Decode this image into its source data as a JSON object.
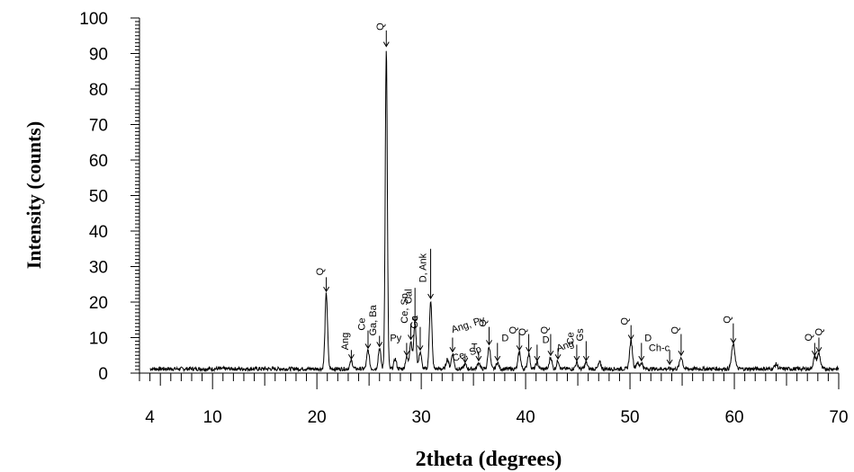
{
  "chart_data": {
    "type": "line",
    "title": "",
    "xlabel": "2theta (degrees)",
    "ylabel": "Intensity (counts)",
    "xlim": [
      3,
      70
    ],
    "ylim": [
      0,
      100
    ],
    "x_ticks": [
      4,
      10,
      20,
      30,
      40,
      50,
      60,
      70
    ],
    "y_ticks": [
      0,
      10,
      20,
      30,
      40,
      50,
      60,
      70,
      80,
      90,
      100
    ],
    "grid": false,
    "legend": "none",
    "line_color": "#000000",
    "baseline": 1.2,
    "peaks": [
      {
        "x": 20.9,
        "y": 22.5,
        "w": 0.12
      },
      {
        "x": 23.3,
        "y": 3.5,
        "w": 0.12
      },
      {
        "x": 24.9,
        "y": 6.5,
        "w": 0.12
      },
      {
        "x": 26.0,
        "y": 7.0,
        "w": 0.12
      },
      {
        "x": 26.65,
        "y": 91.5,
        "w": 0.1
      },
      {
        "x": 27.5,
        "y": 4.0,
        "w": 0.12
      },
      {
        "x": 28.6,
        "y": 4.5,
        "w": 0.12
      },
      {
        "x": 29.0,
        "y": 9.0,
        "w": 0.12
      },
      {
        "x": 29.4,
        "y": 14.0,
        "w": 0.12
      },
      {
        "x": 29.9,
        "y": 6.0,
        "w": 0.12
      },
      {
        "x": 30.9,
        "y": 20.5,
        "w": 0.12
      },
      {
        "x": 32.5,
        "y": 4.0,
        "w": 0.12
      },
      {
        "x": 33.0,
        "y": 5.5,
        "w": 0.12
      },
      {
        "x": 34.2,
        "y": 2.5,
        "w": 0.12
      },
      {
        "x": 35.5,
        "y": 3.0,
        "w": 0.12
      },
      {
        "x": 36.5,
        "y": 7.5,
        "w": 0.12
      },
      {
        "x": 37.3,
        "y": 3.0,
        "w": 0.12
      },
      {
        "x": 39.4,
        "y": 6.0,
        "w": 0.12
      },
      {
        "x": 40.3,
        "y": 5.5,
        "w": 0.12
      },
      {
        "x": 41.1,
        "y": 3.0,
        "w": 0.12
      },
      {
        "x": 42.4,
        "y": 4.5,
        "w": 0.12
      },
      {
        "x": 43.1,
        "y": 3.5,
        "w": 0.12
      },
      {
        "x": 44.9,
        "y": 3.0,
        "w": 0.12
      },
      {
        "x": 45.8,
        "y": 3.0,
        "w": 0.12
      },
      {
        "x": 47.1,
        "y": 3.0,
        "w": 0.12
      },
      {
        "x": 50.1,
        "y": 9.0,
        "w": 0.14
      },
      {
        "x": 50.7,
        "y": 3.0,
        "w": 0.12
      },
      {
        "x": 51.1,
        "y": 3.0,
        "w": 0.12
      },
      {
        "x": 54.9,
        "y": 4.5,
        "w": 0.14
      },
      {
        "x": 59.9,
        "y": 8.0,
        "w": 0.16
      },
      {
        "x": 64.0,
        "y": 2.5,
        "w": 0.14
      },
      {
        "x": 67.7,
        "y": 4.5,
        "w": 0.14
      },
      {
        "x": 68.1,
        "y": 5.5,
        "w": 0.14
      }
    ],
    "annotations": [
      {
        "label": "Q",
        "x": 20.9,
        "arrow_top": 27,
        "arrow_tip": 23,
        "rotate": -90,
        "lx": 20.6,
        "ly": 27.5
      },
      {
        "label": "Ang",
        "x": 23.3,
        "arrow_top": 6.5,
        "arrow_tip": 4,
        "rotate": -90,
        "lx": 23.0,
        "ly": 6.5
      },
      {
        "label": "Ce",
        "x": 24.9,
        "arrow_top": 12.0,
        "arrow_tip": 7,
        "rotate": -90,
        "lx": 24.6,
        "ly": 12.0
      },
      {
        "label": "Ga, Ba",
        "x": 26.0,
        "arrow_top": 10.5,
        "arrow_tip": 7.5,
        "rotate": -90,
        "lx": 25.7,
        "ly": 10.5
      },
      {
        "label": "Q",
        "x": 26.65,
        "arrow_top": 96.5,
        "arrow_tip": 92,
        "rotate": -90,
        "lx": 26.35,
        "ly": 96.5
      },
      {
        "label": "Py",
        "x": 28.6,
        "arrow_top": 8.5,
        "arrow_tip": 5,
        "rotate": 0,
        "lx": 27.0,
        "ly": 9.0
      },
      {
        "label": "Ce, Sp",
        "x": 29.0,
        "arrow_top": 14.0,
        "arrow_tip": 9.5,
        "rotate": -90,
        "lx": 28.7,
        "ly": 14.0
      },
      {
        "label": "Cal",
        "x": 29.4,
        "arrow_top": 24.0,
        "arrow_tip": 14.5,
        "rotate": -90,
        "lx": 29.1,
        "ly": 19.5
      },
      {
        "label": "Ga",
        "x": 29.9,
        "arrow_top": 13.0,
        "arrow_tip": 6.5,
        "rotate": -90,
        "lx": 29.65,
        "ly": 12.5
      },
      {
        "label": "D, Ank",
        "x": 30.9,
        "arrow_top": 35.0,
        "arrow_tip": 21,
        "rotate": -90,
        "lx": 30.45,
        "ly": 25.5
      },
      {
        "label": "Ang, Py",
        "x": 33.0,
        "arrow_top": 10.0,
        "arrow_tip": 6,
        "rotate": -18,
        "lx": 33.0,
        "ly": 11.3
      },
      {
        "label": "Ce, Sp",
        "x": 34.2,
        "arrow_top": 5.5,
        "arrow_tip": 3,
        "rotate": -20,
        "lx": 33.1,
        "ly": 3.2
      },
      {
        "label": "T",
        "x": 35.5,
        "arrow_top": 6.0,
        "arrow_tip": 3.5,
        "rotate": 0,
        "lx": 34.8,
        "ly": 6.5
      },
      {
        "label": "Q",
        "x": 36.5,
        "arrow_top": 13.0,
        "arrow_tip": 8,
        "rotate": -90,
        "lx": 36.2,
        "ly": 13.0
      },
      {
        "label": "D",
        "x": 37.3,
        "arrow_top": 8.5,
        "arrow_tip": 3.5,
        "rotate": 0,
        "lx": 37.7,
        "ly": 9.0
      },
      {
        "label": "Q",
        "x": 39.4,
        "arrow_top": 11.5,
        "arrow_tip": 6.5,
        "rotate": -90,
        "lx": 39.1,
        "ly": 11.0
      },
      {
        "label": "Q",
        "x": 40.3,
        "arrow_top": 11.0,
        "arrow_tip": 6,
        "rotate": -90,
        "lx": 40.0,
        "ly": 10.5
      },
      {
        "label": "D",
        "x": 41.1,
        "arrow_top": 8.0,
        "arrow_tip": 3.5,
        "rotate": 0,
        "lx": 41.6,
        "ly": 8.5
      },
      {
        "label": "Q",
        "x": 42.4,
        "arrow_top": 11.0,
        "arrow_tip": 5,
        "rotate": -90,
        "lx": 42.1,
        "ly": 11.0
      },
      {
        "label": "Ang",
        "x": 43.1,
        "arrow_top": 7.0,
        "arrow_tip": 4,
        "rotate": -20,
        "lx": 43.1,
        "ly": 6.0
      },
      {
        "label": "Ce",
        "x": 44.9,
        "arrow_top": 8.0,
        "arrow_tip": 3.5,
        "rotate": -90,
        "lx": 44.6,
        "ly": 8.0
      },
      {
        "label": "Gs",
        "x": 45.8,
        "arrow_top": 9.0,
        "arrow_tip": 3.5,
        "rotate": -90,
        "lx": 45.5,
        "ly": 9.0
      },
      {
        "label": "Q",
        "x": 50.1,
        "arrow_top": 13.5,
        "arrow_tip": 9.5,
        "rotate": -90,
        "lx": 49.8,
        "ly": 13.5
      },
      {
        "label": "D",
        "x": 51.1,
        "arrow_top": 8.5,
        "arrow_tip": 3.5,
        "rotate": 0,
        "lx": 51.4,
        "ly": 9.0
      },
      {
        "label": "Ch-c",
        "x": 53.8,
        "arrow_top": 6.5,
        "arrow_tip": 2.5,
        "rotate": 0,
        "lx": 51.8,
        "ly": 6.2
      },
      {
        "label": "Q",
        "x": 54.9,
        "arrow_top": 11.0,
        "arrow_tip": 5,
        "rotate": -90,
        "lx": 54.6,
        "ly": 11.0
      },
      {
        "label": "Q",
        "x": 59.9,
        "arrow_top": 14.0,
        "arrow_tip": 8.5,
        "rotate": -90,
        "lx": 59.6,
        "ly": 14.0
      },
      {
        "label": "Q",
        "x": 67.7,
        "arrow_top": 8.5,
        "arrow_tip": 5,
        "rotate": -90,
        "lx": 67.4,
        "ly": 9.0
      },
      {
        "label": "Q",
        "x": 68.1,
        "arrow_top": 10.0,
        "arrow_tip": 6,
        "rotate": -90,
        "lx": 68.4,
        "ly": 10.5
      }
    ]
  }
}
